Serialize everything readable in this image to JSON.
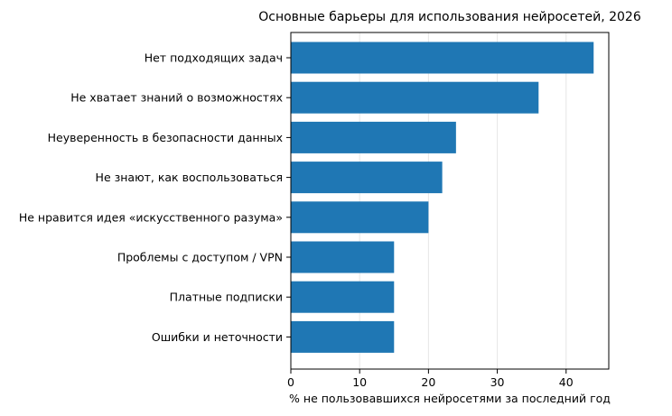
{
  "chart_data": {
    "type": "bar",
    "orientation": "horizontal",
    "title": "Основные барьеры для использования нейросетей, 2026",
    "xlabel": "% не пользовавшихся нейросетями за последний год",
    "ylabel": "",
    "categories": [
      "Нет подходящих задач",
      "Не хватает знаний о возможностях",
      "Неуверенность в безопасности данных",
      "Не знают, как воспользоваться",
      "Не нравится идея «искусственного разума»",
      "Проблемы с доступом / VPN",
      "Платные подписки",
      "Ошибки и неточности"
    ],
    "values": [
      44,
      36,
      24,
      22,
      20,
      15,
      15,
      15
    ],
    "xlim": [
      0,
      46.2
    ],
    "xticks": [
      0,
      10,
      20,
      30,
      40
    ],
    "grid": "x",
    "bar_color": "#1f77b4",
    "grid_color": "#e6e6e6"
  }
}
